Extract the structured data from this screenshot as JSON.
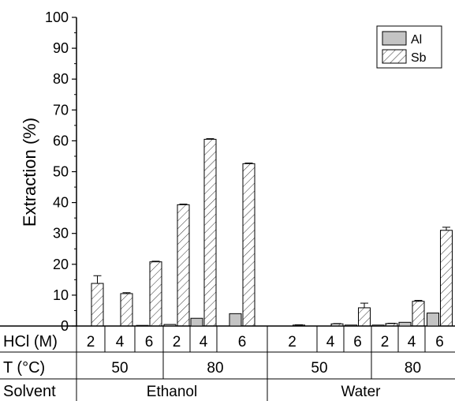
{
  "chart_data": {
    "type": "bar",
    "ylabel": "Extraction (%)",
    "ylim": [
      0,
      100
    ],
    "yticks": [
      0,
      10,
      20,
      30,
      40,
      50,
      60,
      70,
      80,
      90,
      100
    ],
    "legend": {
      "position": "top-right",
      "entries": [
        "Al",
        "Sb"
      ]
    },
    "row_labels": {
      "hcl": "HCl (M)",
      "temp": "T (°C)",
      "solvent": "Solvent"
    },
    "groups": [
      {
        "solvent": "Ethanol",
        "temp": "50",
        "hcl": "2",
        "al": 0.0,
        "sb": 13.8,
        "sb_err": 2.5
      },
      {
        "solvent": "Ethanol",
        "temp": "50",
        "hcl": "4",
        "al": 0.0,
        "sb": 10.5,
        "sb_err": 0.3
      },
      {
        "solvent": "Ethanol",
        "temp": "50",
        "hcl": "6",
        "al": 0.2,
        "sb": 20.8,
        "sb_err": 0.2
      },
      {
        "solvent": "Ethanol",
        "temp": "80",
        "hcl": "2",
        "al": 0.5,
        "sb": 39.3,
        "sb_err": 0.2
      },
      {
        "solvent": "Ethanol",
        "temp": "80",
        "hcl": "4",
        "al": 2.5,
        "sb": 60.5,
        "sb_err": 0.2
      },
      {
        "solvent": "Ethanol",
        "temp": "80",
        "hcl": "6",
        "al": 4.0,
        "sb": 52.6,
        "sb_err": 0.2
      },
      {
        "solvent": "Water",
        "temp": "50",
        "hcl": "2",
        "al": 0.0,
        "sb": 0.3,
        "sb_err": 0.1
      },
      {
        "solvent": "Water",
        "temp": "50",
        "hcl": "4",
        "al": 0.0,
        "sb": 0.7,
        "sb_err": 0.1
      },
      {
        "solvent": "Water",
        "temp": "50",
        "hcl": "6",
        "al": 0.3,
        "sb": 5.9,
        "sb_err": 1.5
      },
      {
        "solvent": "Water",
        "temp": "80",
        "hcl": "2",
        "al": 0.3,
        "sb": 0.8,
        "sb_err": 0.1
      },
      {
        "solvent": "Water",
        "temp": "80",
        "hcl": "4",
        "al": 1.2,
        "sb": 8.0,
        "sb_err": 0.3
      },
      {
        "solvent": "Water",
        "temp": "80",
        "hcl": "6",
        "al": 4.2,
        "sb": 31.0,
        "sb_err": 1.0
      }
    ],
    "temp_spans": [
      {
        "label": "50",
        "start": 0,
        "end": 2
      },
      {
        "label": "80",
        "start": 3,
        "end": 5
      },
      {
        "label": "50",
        "start": 6,
        "end": 8
      },
      {
        "label": "80",
        "start": 9,
        "end": 11
      }
    ],
    "solvent_spans": [
      {
        "label": "Ethanol",
        "start": 0,
        "end": 5
      },
      {
        "label": "Water",
        "start": 6,
        "end": 11
      }
    ],
    "colors": {
      "al_fill": "#c4c4c4",
      "sb_fill": "#ffffff",
      "edge": "#000000"
    }
  }
}
